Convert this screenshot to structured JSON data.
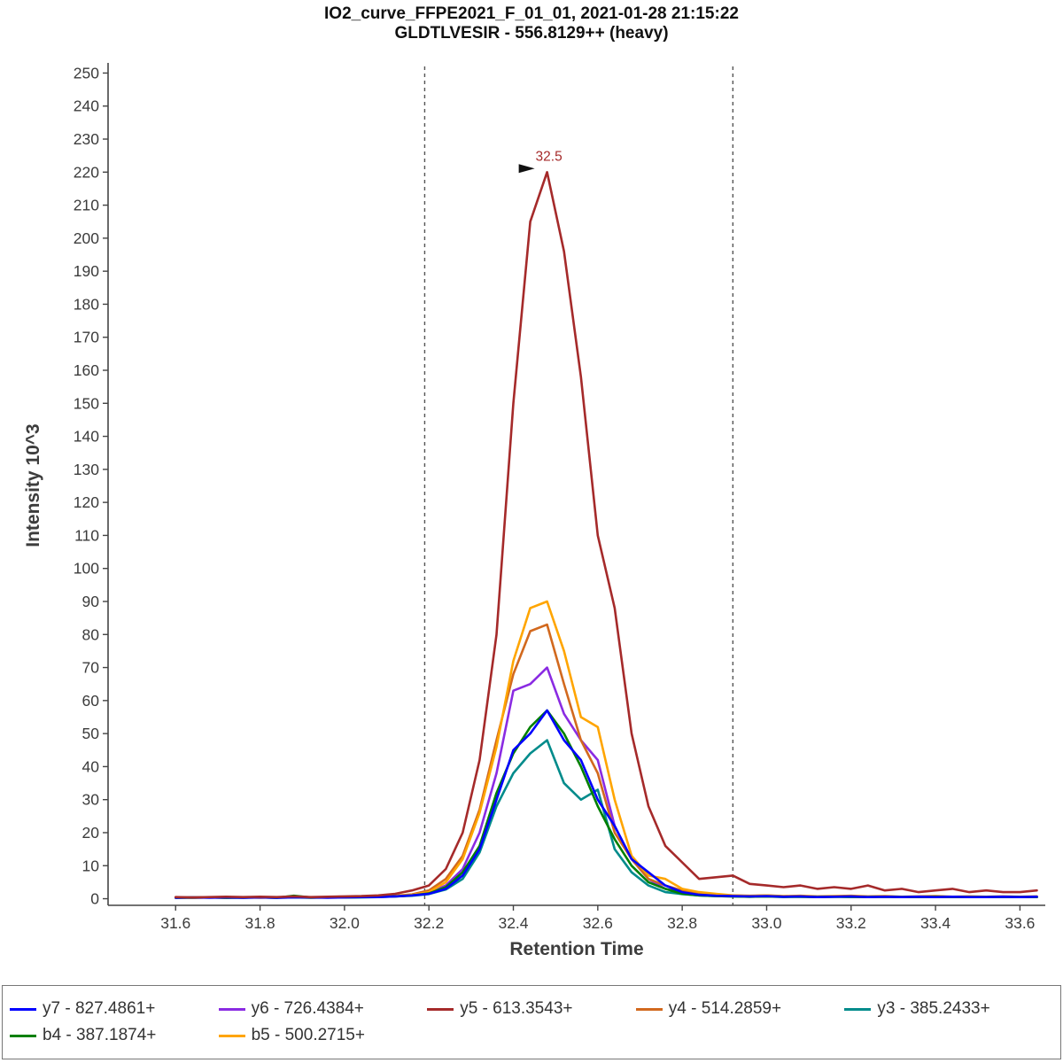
{
  "header": {
    "window_kind": "chromatogram-graph"
  },
  "chart_data": {
    "type": "line",
    "title": "IO2_curve_FFPE2021_F_01_01, 2021-01-28 21:15:22",
    "subtitle": "GLDTLVESIR - 556.8129++ (heavy)",
    "xlabel": "Retention Time",
    "ylabel": "Intensity 10^3",
    "xlim": [
      31.44,
      33.66
    ],
    "ylim": [
      -2,
      252
    ],
    "grid": false,
    "legend_position": "bottom",
    "x_tick_labels": [
      "31.6",
      "31.8",
      "32.0",
      "32.2",
      "32.4",
      "32.6",
      "32.8",
      "33.0",
      "33.2",
      "33.4",
      "33.6"
    ],
    "y_ticks": [
      0,
      10,
      20,
      30,
      40,
      50,
      60,
      70,
      80,
      90,
      100,
      110,
      120,
      130,
      140,
      150,
      160,
      170,
      180,
      190,
      200,
      210,
      220,
      230,
      240,
      250
    ],
    "integration_boundaries": {
      "start": 32.19,
      "end": 32.92,
      "style": "dashed",
      "color": "#555555"
    },
    "annotation": {
      "label": "32.5",
      "x": 32.48,
      "y": 220,
      "color": "#A52A2A"
    },
    "x": [
      31.6,
      31.64,
      31.68,
      31.72,
      31.76,
      31.8,
      31.84,
      31.88,
      31.92,
      31.96,
      32.0,
      32.04,
      32.08,
      32.12,
      32.16,
      32.2,
      32.24,
      32.28,
      32.32,
      32.36,
      32.4,
      32.44,
      32.48,
      32.52,
      32.56,
      32.6,
      32.64,
      32.68,
      32.72,
      32.76,
      32.8,
      32.84,
      32.88,
      32.92,
      32.96,
      33.0,
      33.04,
      33.08,
      33.12,
      33.16,
      33.2,
      33.24,
      33.28,
      33.32,
      33.36,
      33.4,
      33.44,
      33.48,
      33.52,
      33.56,
      33.6,
      33.64
    ],
    "series": [
      {
        "id": "y7",
        "name": "y7 - 827.4861+",
        "color": "#0000FF",
        "values": [
          0.3,
          0.4,
          0.3,
          0.4,
          0.3,
          0.4,
          0.3,
          0.4,
          0.4,
          0.3,
          0.4,
          0.5,
          0.5,
          0.7,
          1.0,
          1.5,
          3,
          7,
          15,
          30,
          45,
          50,
          57,
          48,
          42,
          30,
          22,
          12,
          8,
          4,
          2,
          1.2,
          0.9,
          0.8,
          0.7,
          0.8,
          0.6,
          0.7,
          0.5,
          0.6,
          0.7,
          0.5,
          0.6,
          0.5,
          0.6,
          0.5,
          0.6,
          0.5,
          0.5,
          0.6,
          0.5,
          0.6
        ]
      },
      {
        "id": "y6",
        "name": "y6 - 726.4384+",
        "color": "#8A2BE2",
        "values": [
          0.4,
          0.3,
          0.4,
          0.3,
          0.4,
          0.4,
          0.3,
          0.5,
          0.4,
          0.4,
          0.5,
          0.5,
          0.6,
          0.8,
          1.1,
          1.8,
          4,
          9,
          20,
          38,
          63,
          65,
          70,
          56,
          48,
          42,
          22,
          12,
          6,
          3,
          2,
          1.3,
          1,
          0.9,
          0.8,
          0.9,
          0.7,
          0.8,
          0.6,
          0.7,
          0.8,
          0.6,
          0.7,
          0.5,
          0.6,
          0.7,
          0.5,
          0.6,
          0.5,
          0.6,
          0.5,
          0.6
        ]
      },
      {
        "id": "y5",
        "name": "y5 - 613.3543+",
        "color": "#A52A2A",
        "values": [
          0.5,
          0.4,
          0.5,
          0.6,
          0.5,
          0.6,
          0.5,
          0.7,
          0.5,
          0.6,
          0.7,
          0.8,
          1.0,
          1.5,
          2.5,
          4,
          9,
          20,
          42,
          80,
          150,
          205,
          220,
          196,
          158,
          110,
          88,
          50,
          28,
          16,
          11,
          6,
          6.5,
          7,
          4.5,
          4,
          3.5,
          4,
          3,
          3.5,
          3,
          4,
          2.5,
          3,
          2,
          2.5,
          3,
          2,
          2.5,
          2,
          2,
          2.5
        ]
      },
      {
        "id": "y4",
        "name": "y4 - 514.2859+",
        "color": "#D2691E",
        "values": [
          0.4,
          0.3,
          0.4,
          0.4,
          0.3,
          0.5,
          0.4,
          0.5,
          0.4,
          0.5,
          0.5,
          0.6,
          0.7,
          0.9,
          1.3,
          2.5,
          6,
          13,
          27,
          48,
          68,
          81,
          83,
          65,
          48,
          38,
          20,
          12,
          6,
          4,
          2.5,
          1.5,
          1.2,
          1,
          0.9,
          1,
          0.8,
          0.9,
          0.7,
          0.8,
          0.9,
          0.7,
          0.8,
          0.6,
          0.7,
          0.8,
          0.6,
          0.7,
          0.6,
          0.7,
          0.6,
          0.7
        ]
      },
      {
        "id": "y3",
        "name": "y3 - 385.2433+",
        "color": "#008B8B",
        "values": [
          0.3,
          0.3,
          0.4,
          0.3,
          0.3,
          0.4,
          0.3,
          0.4,
          0.3,
          0.4,
          0.4,
          0.4,
          0.5,
          0.7,
          0.9,
          1.4,
          2.8,
          6,
          14,
          28,
          38,
          44,
          48,
          35,
          30,
          33,
          15,
          8,
          4,
          2,
          1.4,
          1,
          0.8,
          0.7,
          0.6,
          0.7,
          0.5,
          0.6,
          0.5,
          0.6,
          0.5,
          0.5,
          0.6,
          0.5,
          0.5,
          0.6,
          0.5,
          0.5,
          0.5,
          0.5,
          0.5,
          0.5
        ]
      },
      {
        "id": "b4",
        "name": "b4 - 387.1874+",
        "color": "#008000",
        "values": [
          0.3,
          0.4,
          0.4,
          0.3,
          0.4,
          0.4,
          0.3,
          0.9,
          0.4,
          0.4,
          0.4,
          0.5,
          0.6,
          0.7,
          1.0,
          1.6,
          3.5,
          8,
          16,
          32,
          44,
          52,
          57,
          50,
          40,
          28,
          18,
          10,
          5,
          3,
          1.5,
          1,
          0.8,
          0.7,
          0.6,
          0.7,
          0.6,
          0.6,
          0.5,
          0.6,
          0.6,
          0.5,
          0.6,
          0.5,
          0.5,
          0.6,
          0.5,
          0.5,
          0.5,
          0.6,
          0.5,
          0.5
        ]
      },
      {
        "id": "b5",
        "name": "b5 - 500.2715+",
        "color": "#FFA500",
        "values": [
          0.3,
          0.3,
          0.4,
          0.3,
          0.4,
          0.3,
          0.4,
          0.5,
          0.3,
          0.4,
          0.4,
          0.5,
          0.6,
          0.8,
          1.2,
          2,
          5,
          12,
          26,
          46,
          72,
          88,
          90,
          75,
          55,
          52,
          30,
          13,
          7,
          6,
          3,
          2,
          1.5,
          1,
          0.8,
          1,
          0.7,
          0.8,
          0.6,
          0.7,
          0.8,
          0.6,
          0.7,
          0.5,
          0.6,
          0.7,
          0.5,
          0.6,
          0.5,
          0.6,
          0.5,
          0.6
        ]
      }
    ],
    "z_order": [
      "y6",
      "y4",
      "b5",
      "y3",
      "b4",
      "y7",
      "y5"
    ]
  }
}
